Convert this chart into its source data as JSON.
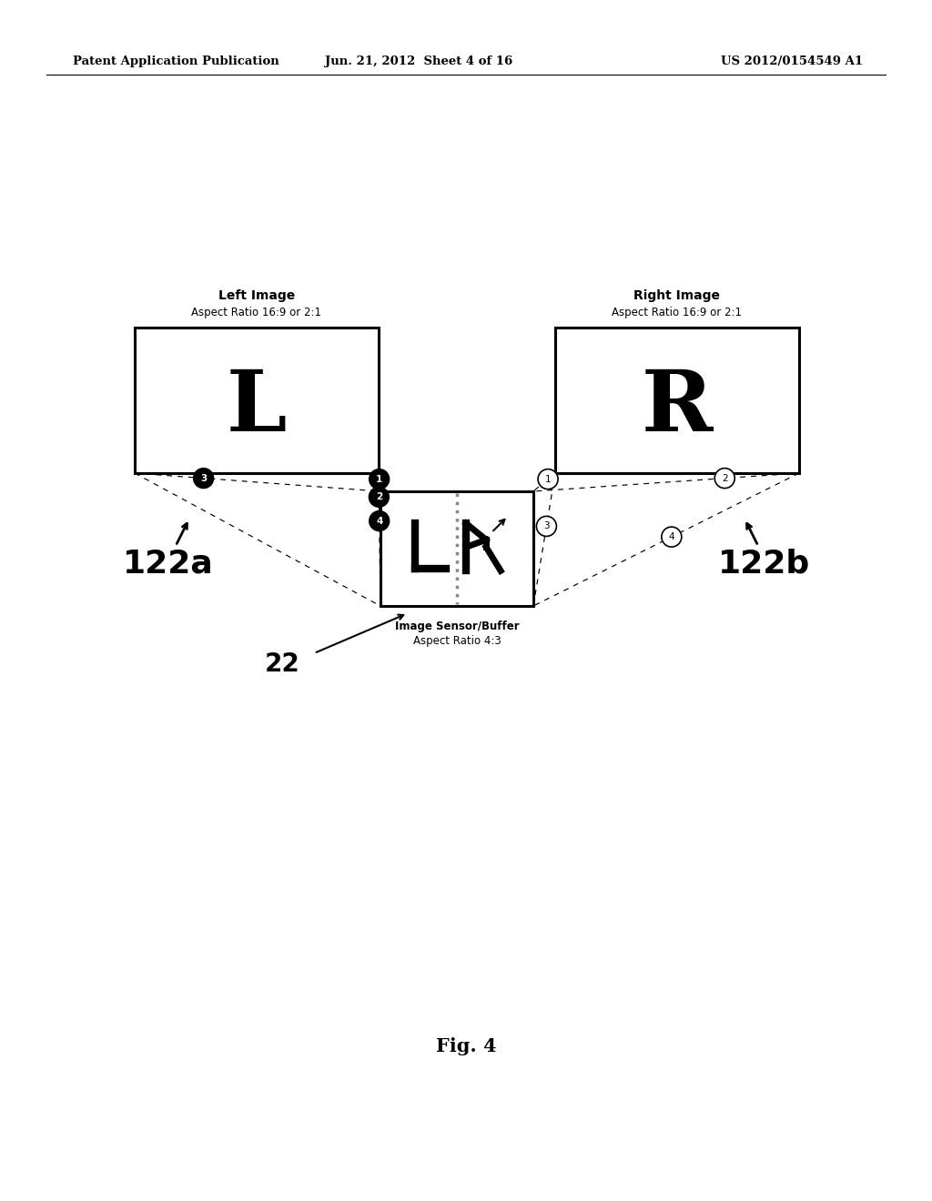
{
  "header_left": "Patent Application Publication",
  "header_center": "Jun. 21, 2012  Sheet 4 of 16",
  "header_right": "US 2012/0154549 A1",
  "fig_label": "Fig. 4",
  "left_image_label": "Left Image",
  "left_aspect_label": "Aspect Ratio 16:9 or 2:1",
  "right_image_label": "Right Image",
  "right_aspect_label": "Aspect Ratio 16:9 or 2:1",
  "sensor_label1": "Image Sensor/Buffer",
  "sensor_label2": "Aspect Ratio 4:3",
  "label_22": "22",
  "label_122a": "122a",
  "label_122b": "122b",
  "bg_color": "#ffffff"
}
